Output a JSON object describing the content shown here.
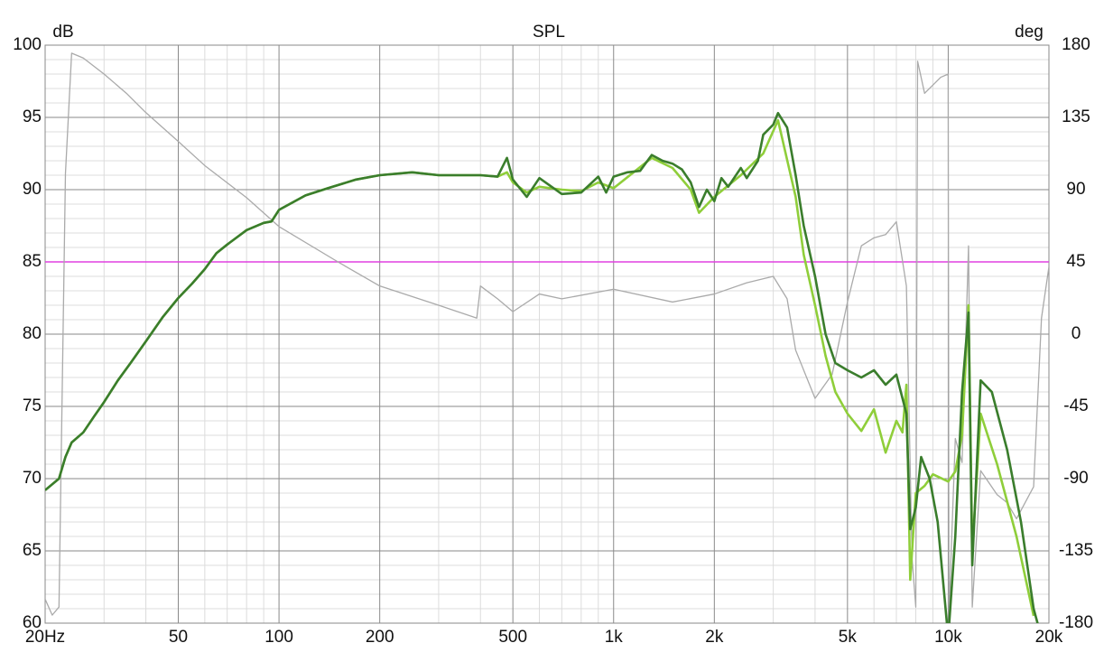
{
  "chart_data": {
    "type": "line",
    "title": "SPL",
    "ylabel": "dB",
    "y2label": "deg",
    "xscale": "log",
    "xlim": [
      20,
      20000
    ],
    "ylim": [
      60,
      100
    ],
    "y2lim": [
      -180,
      180
    ],
    "xticks": [
      {
        "value": 20,
        "label": "20Hz"
      },
      50,
      100,
      200,
      500,
      {
        "value": 1000,
        "label": "1k"
      },
      {
        "value": 2000,
        "label": "2k"
      },
      {
        "value": 5000,
        "label": "5k"
      },
      {
        "value": 10000,
        "label": "10k"
      },
      {
        "value": 20000,
        "label": "20k"
      }
    ],
    "xminorticks": [
      30,
      40,
      60,
      70,
      80,
      90,
      300,
      400,
      600,
      700,
      800,
      900,
      3000,
      4000,
      6000,
      7000,
      8000,
      9000
    ],
    "yticks": [
      60,
      65,
      70,
      75,
      80,
      85,
      90,
      95,
      100
    ],
    "yminorticks": [
      61,
      62,
      63,
      64,
      66,
      67,
      68,
      69,
      71,
      72,
      73,
      74,
      76,
      77,
      78,
      79,
      81,
      82,
      83,
      84,
      86,
      87,
      88,
      89,
      91,
      92,
      93,
      94,
      96,
      97,
      98,
      99
    ],
    "y2ticks": [
      -180,
      -135,
      -90,
      -45,
      0,
      45,
      90,
      135,
      180
    ],
    "grid": true,
    "hlines": [
      {
        "value": 85,
        "color": "#e040e0"
      }
    ],
    "series": [
      {
        "color": "#aaaaaa",
        "axis": "y2",
        "x": [
          20,
          21,
          22,
          23,
          24,
          26,
          30,
          35,
          40,
          50,
          60,
          80,
          100,
          150,
          200,
          300,
          390,
          400,
          450,
          500,
          600,
          700,
          1000,
          1500,
          2000,
          2500,
          3000,
          3300,
          3500,
          4000,
          4500,
          5000,
          5500,
          6000,
          6500,
          7000,
          7500,
          7800,
          8000,
          8100,
          8500,
          9500,
          10000,
          10050,
          10500,
          11000,
          11500,
          11800,
          12500,
          14000,
          15000,
          16000,
          18000,
          19000,
          20000
        ],
        "values": [
          -165,
          -175,
          -170,
          100,
          175,
          172,
          162,
          150,
          138,
          120,
          105,
          85,
          67,
          45,
          30,
          18,
          10,
          30,
          22,
          14,
          25,
          22,
          28,
          20,
          25,
          32,
          36,
          22,
          -10,
          -40,
          -25,
          20,
          55,
          60,
          62,
          70,
          30,
          -140,
          -170,
          170,
          150,
          160,
          162,
          -175,
          -65,
          -80,
          55,
          -170,
          -85,
          -100,
          -105,
          -115,
          -95,
          10,
          42
        ]
      },
      {
        "color": "#8fce3a",
        "x": [
          20,
          22,
          23,
          24,
          26,
          28,
          30,
          33,
          36,
          40,
          45,
          50,
          55,
          60,
          65,
          70,
          80,
          90,
          95,
          100,
          120,
          140,
          170,
          200,
          250,
          300,
          400,
          450,
          480,
          500,
          550,
          600,
          700,
          800,
          900,
          1000,
          1300,
          1500,
          1700,
          1800,
          2000,
          2400,
          2800,
          3100,
          3500,
          3700,
          4000,
          4300,
          4600,
          5000,
          5500,
          6000,
          6500,
          7000,
          7300,
          7500,
          7700,
          8000,
          8500,
          9000,
          10000,
          10500,
          11000,
          11500,
          11800,
          12500,
          14000,
          16000,
          18000
        ],
        "values": [
          69.2,
          70,
          71.5,
          72.5,
          73.2,
          74.3,
          75.3,
          76.8,
          78,
          79.5,
          81.2,
          82.5,
          83.5,
          84.5,
          85.6,
          86.2,
          87.2,
          87.7,
          87.8,
          88.6,
          89.6,
          90.1,
          90.7,
          91,
          91.2,
          91,
          91,
          90.9,
          91.2,
          90.5,
          89.8,
          90.2,
          90,
          89.9,
          90.5,
          90.1,
          92.2,
          91.5,
          90,
          88.4,
          89.5,
          91,
          92.5,
          94.8,
          89.5,
          85.5,
          82,
          78.5,
          76,
          74.5,
          73.3,
          74.8,
          71.8,
          74,
          73.2,
          76.5,
          63,
          69,
          69.5,
          70.3,
          69.8,
          70.5,
          73,
          82,
          65,
          74.5,
          71,
          66,
          60.5
        ]
      },
      {
        "color": "#3a7d2c",
        "x": [
          20,
          22,
          23,
          24,
          26,
          28,
          30,
          33,
          36,
          40,
          45,
          50,
          55,
          60,
          65,
          70,
          80,
          90,
          95,
          100,
          120,
          140,
          170,
          200,
          250,
          300,
          400,
          450,
          480,
          500,
          550,
          600,
          700,
          800,
          900,
          950,
          1000,
          1100,
          1200,
          1300,
          1400,
          1500,
          1600,
          1700,
          1800,
          1900,
          2000,
          2100,
          2200,
          2400,
          2500,
          2700,
          2800,
          3000,
          3100,
          3300,
          3500,
          3700,
          4000,
          4300,
          4600,
          5000,
          5500,
          6000,
          6500,
          7000,
          7500,
          7700,
          8000,
          8300,
          8800,
          9300,
          10000,
          10500,
          11000,
          11500,
          11800,
          12500,
          13500,
          15000,
          16500,
          18000,
          19000
        ],
        "values": [
          69.2,
          70,
          71.5,
          72.5,
          73.2,
          74.3,
          75.3,
          76.8,
          78,
          79.5,
          81.2,
          82.5,
          83.5,
          84.5,
          85.6,
          86.2,
          87.2,
          87.7,
          87.8,
          88.6,
          89.6,
          90.1,
          90.7,
          91,
          91.2,
          91,
          91,
          90.9,
          92.2,
          90.7,
          89.5,
          90.8,
          89.7,
          89.8,
          90.9,
          89.8,
          90.9,
          91.2,
          91.3,
          92.4,
          92,
          91.8,
          91.4,
          90.5,
          88.8,
          90,
          89.2,
          90.8,
          90.2,
          91.5,
          90.8,
          92,
          93.8,
          94.5,
          95.3,
          94.3,
          91,
          87.5,
          84,
          80,
          78,
          77.5,
          77,
          77.5,
          76.5,
          77.2,
          74.5,
          66.5,
          68,
          71.5,
          70,
          67,
          59,
          66,
          76,
          81.5,
          64,
          76.8,
          76,
          72,
          67,
          61,
          59
        ]
      }
    ]
  }
}
